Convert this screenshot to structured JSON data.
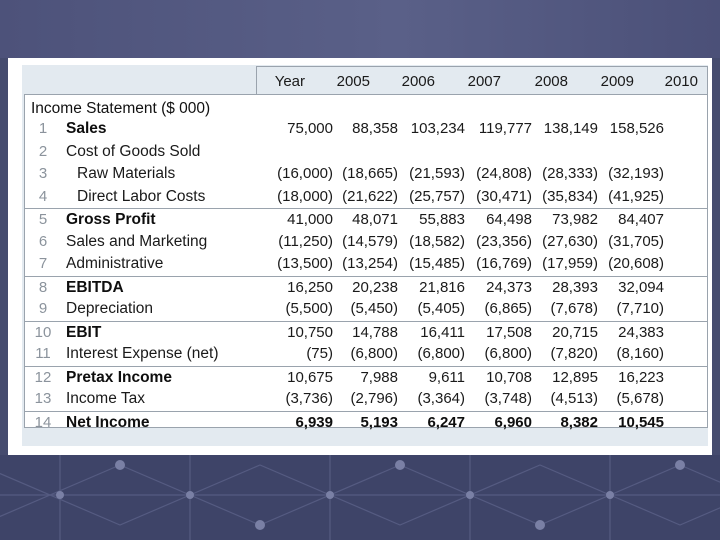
{
  "table": {
    "year_label": "Year",
    "years": [
      "2005",
      "2006",
      "2007",
      "2008",
      "2009",
      "2010"
    ],
    "title": "Income Statement ($ 000)",
    "rows": [
      {
        "num": "1",
        "label": "Sales",
        "values": [
          "75,000",
          "88,358",
          "103,234",
          "119,777",
          "138,149",
          "158,526"
        ]
      },
      {
        "num": "2",
        "label": "Cost of Goods Sold",
        "values": [
          "",
          "",
          "",
          "",
          "",
          ""
        ]
      },
      {
        "num": "3",
        "label": "Raw Materials",
        "values": [
          "(16,000)",
          "(18,665)",
          "(21,593)",
          "(24,808)",
          "(28,333)",
          "(32,193)"
        ]
      },
      {
        "num": "4",
        "label": "Direct Labor Costs",
        "values": [
          "(18,000)",
          "(21,622)",
          "(25,757)",
          "(30,471)",
          "(35,834)",
          "(41,925)"
        ]
      },
      {
        "num": "5",
        "label": "Gross Profit",
        "values": [
          "41,000",
          "48,071",
          "55,883",
          "64,498",
          "73,982",
          "84,407"
        ]
      },
      {
        "num": "6",
        "label": "Sales and Marketing",
        "values": [
          "(11,250)",
          "(14,579)",
          "(18,582)",
          "(23,356)",
          "(27,630)",
          "(31,705)"
        ]
      },
      {
        "num": "7",
        "label": "Administrative",
        "values": [
          "(13,500)",
          "(13,254)",
          "(15,485)",
          "(16,769)",
          "(17,959)",
          "(20,608)"
        ]
      },
      {
        "num": "8",
        "label": "EBITDA",
        "values": [
          "16,250",
          "20,238",
          "21,816",
          "24,373",
          "28,393",
          "32,094"
        ]
      },
      {
        "num": "9",
        "label": "Depreciation",
        "values": [
          "(5,500)",
          "(5,450)",
          "(5,405)",
          "(6,865)",
          "(7,678)",
          "(7,710)"
        ]
      },
      {
        "num": "10",
        "label": "EBIT",
        "values": [
          "10,750",
          "14,788",
          "16,411",
          "17,508",
          "20,715",
          "24,383"
        ]
      },
      {
        "num": "11",
        "label": "Interest Expense (net)",
        "values": [
          "(75)",
          "(6,800)",
          "(6,800)",
          "(6,800)",
          "(7,820)",
          "(8,160)"
        ]
      },
      {
        "num": "12",
        "label": "Pretax Income",
        "values": [
          "10,675",
          "7,988",
          "9,611",
          "10,708",
          "12,895",
          "16,223"
        ]
      },
      {
        "num": "13",
        "label": "Income Tax",
        "values": [
          "(3,736)",
          "(2,796)",
          "(3,364)",
          "(3,748)",
          "(4,513)",
          "(5,678)"
        ]
      },
      {
        "num": "14",
        "label": "Net Income",
        "values": [
          "6,939",
          "5,193",
          "6,247",
          "6,960",
          "8,382",
          "10,545"
        ]
      }
    ]
  }
}
